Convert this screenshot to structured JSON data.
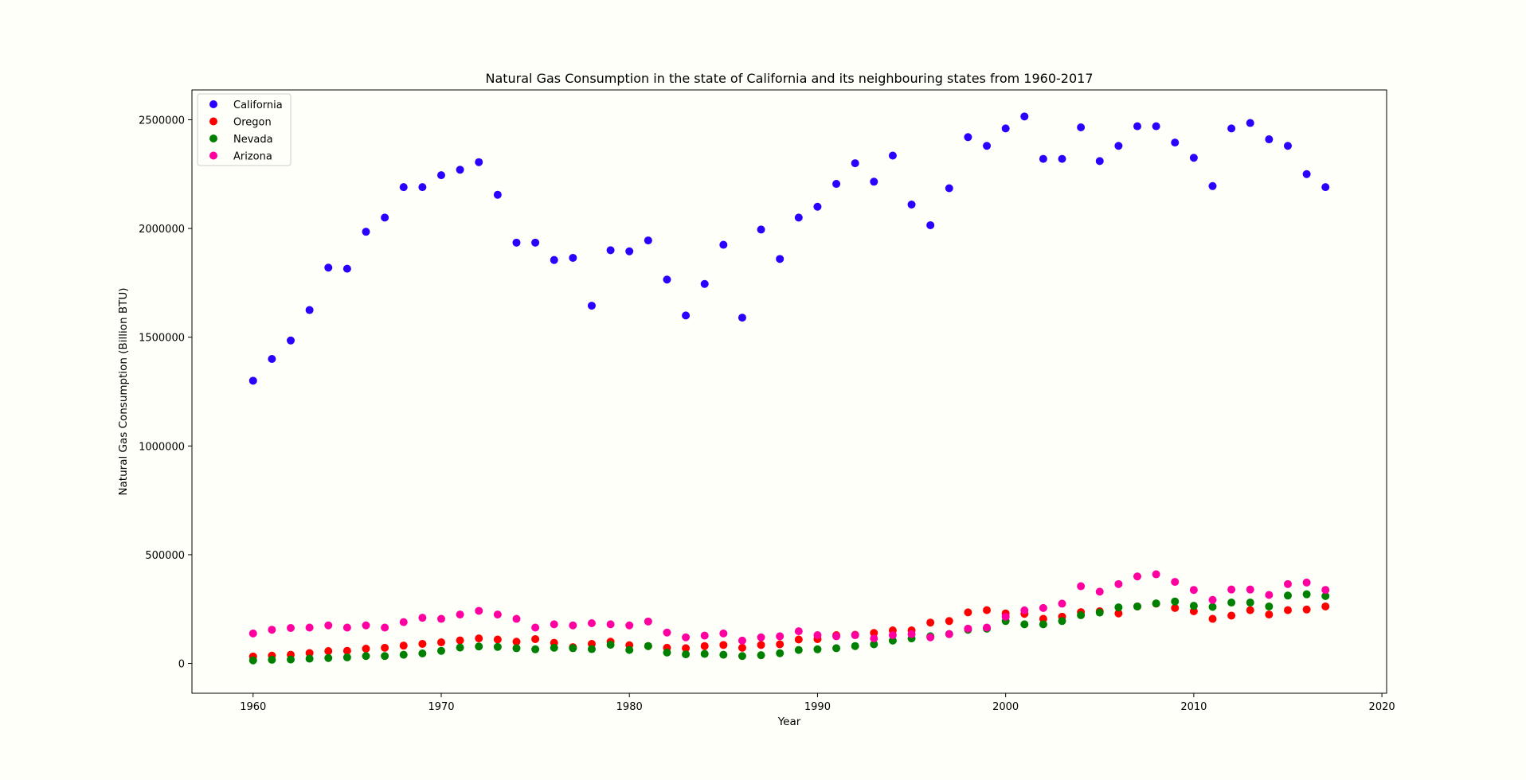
{
  "chart_data": {
    "type": "scatter",
    "title": "Natural Gas Consumption in the state of California and its neighbouring states from 1960-2017",
    "xlabel": "Year",
    "ylabel": "Natural Gas Consumption (Billion BTU)",
    "xlim": [
      1956.75,
      2020.25
    ],
    "ylim": [
      -137000,
      2637000
    ],
    "xticks": [
      1960,
      1970,
      1980,
      1990,
      2000,
      2010,
      2020
    ],
    "yticks": [
      0,
      500000,
      1000000,
      1500000,
      2000000,
      2500000
    ],
    "grid": false,
    "legend_position": "top-left",
    "x": [
      1960,
      1961,
      1962,
      1963,
      1964,
      1965,
      1966,
      1967,
      1968,
      1969,
      1970,
      1971,
      1972,
      1973,
      1974,
      1975,
      1976,
      1977,
      1978,
      1979,
      1980,
      1981,
      1982,
      1983,
      1984,
      1985,
      1986,
      1987,
      1988,
      1989,
      1990,
      1991,
      1992,
      1993,
      1994,
      1995,
      1996,
      1997,
      1998,
      1999,
      2000,
      2001,
      2002,
      2003,
      2004,
      2005,
      2006,
      2007,
      2008,
      2009,
      2010,
      2011,
      2012,
      2013,
      2014,
      2015,
      2016,
      2017
    ],
    "series": [
      {
        "name": "California",
        "color": "#2a00ff",
        "values": [
          1300000,
          1400000,
          1485000,
          1625000,
          1820000,
          1815000,
          1985000,
          2050000,
          2190000,
          2190000,
          2245000,
          2270000,
          2305000,
          2155000,
          1935000,
          1935000,
          1855000,
          1865000,
          1645000,
          1900000,
          1895000,
          1945000,
          1765000,
          1600000,
          1745000,
          1925000,
          1590000,
          1995000,
          1860000,
          2050000,
          2100000,
          2205000,
          2300000,
          2215000,
          2335000,
          2110000,
          2015000,
          2185000,
          2420000,
          2380000,
          2460000,
          2515000,
          2320000,
          2320000,
          2465000,
          2310000,
          2380000,
          2470000,
          2470000,
          2395000,
          2325000,
          2195000,
          2460000,
          2485000,
          2410000,
          2380000,
          2250000,
          2190000
        ]
      },
      {
        "name": "Oregon",
        "color": "#ff0000",
        "values": [
          32000,
          36000,
          40000,
          48000,
          57000,
          58000,
          68000,
          72000,
          82000,
          90000,
          97000,
          106000,
          115000,
          110000,
          100000,
          112000,
          95000,
          75000,
          90000,
          100000,
          84000,
          80000,
          72000,
          70000,
          80000,
          85000,
          72000,
          85000,
          88000,
          110000,
          112000,
          130000,
          132000,
          140000,
          152000,
          152000,
          188000,
          195000,
          235000,
          245000,
          230000,
          228000,
          205000,
          215000,
          236000,
          240000,
          230000,
          262000,
          275000,
          255000,
          240000,
          205000,
          220000,
          245000,
          225000,
          245000,
          248000,
          262000
        ]
      },
      {
        "name": "Nevada",
        "color": "#008000",
        "values": [
          14000,
          17000,
          18000,
          22000,
          25000,
          28000,
          34000,
          34000,
          40000,
          46000,
          58000,
          73000,
          78000,
          76000,
          70000,
          65000,
          72000,
          70000,
          66000,
          86000,
          62000,
          80000,
          50000,
          42000,
          44000,
          40000,
          34000,
          38000,
          47000,
          62000,
          65000,
          70000,
          80000,
          88000,
          105000,
          115000,
          125000,
          135000,
          155000,
          160000,
          195000,
          180000,
          180000,
          195000,
          222000,
          234000,
          258000,
          262000,
          276000,
          285000,
          265000,
          260000,
          280000,
          280000,
          262000,
          312000,
          318000,
          310000
        ]
      },
      {
        "name": "Arizona",
        "color": "#ff00a0",
        "values": [
          138000,
          155000,
          163000,
          165000,
          175000,
          165000,
          175000,
          165000,
          190000,
          210000,
          205000,
          225000,
          242000,
          225000,
          205000,
          165000,
          180000,
          175000,
          185000,
          180000,
          175000,
          193000,
          142000,
          120000,
          128000,
          138000,
          105000,
          120000,
          125000,
          148000,
          130000,
          125000,
          130000,
          115000,
          130000,
          135000,
          120000,
          135000,
          160000,
          165000,
          215000,
          244000,
          255000,
          275000,
          355000,
          330000,
          365000,
          400000,
          410000,
          375000,
          338000,
          292000,
          340000,
          340000,
          315000,
          365000,
          372000,
          338000
        ]
      }
    ]
  }
}
